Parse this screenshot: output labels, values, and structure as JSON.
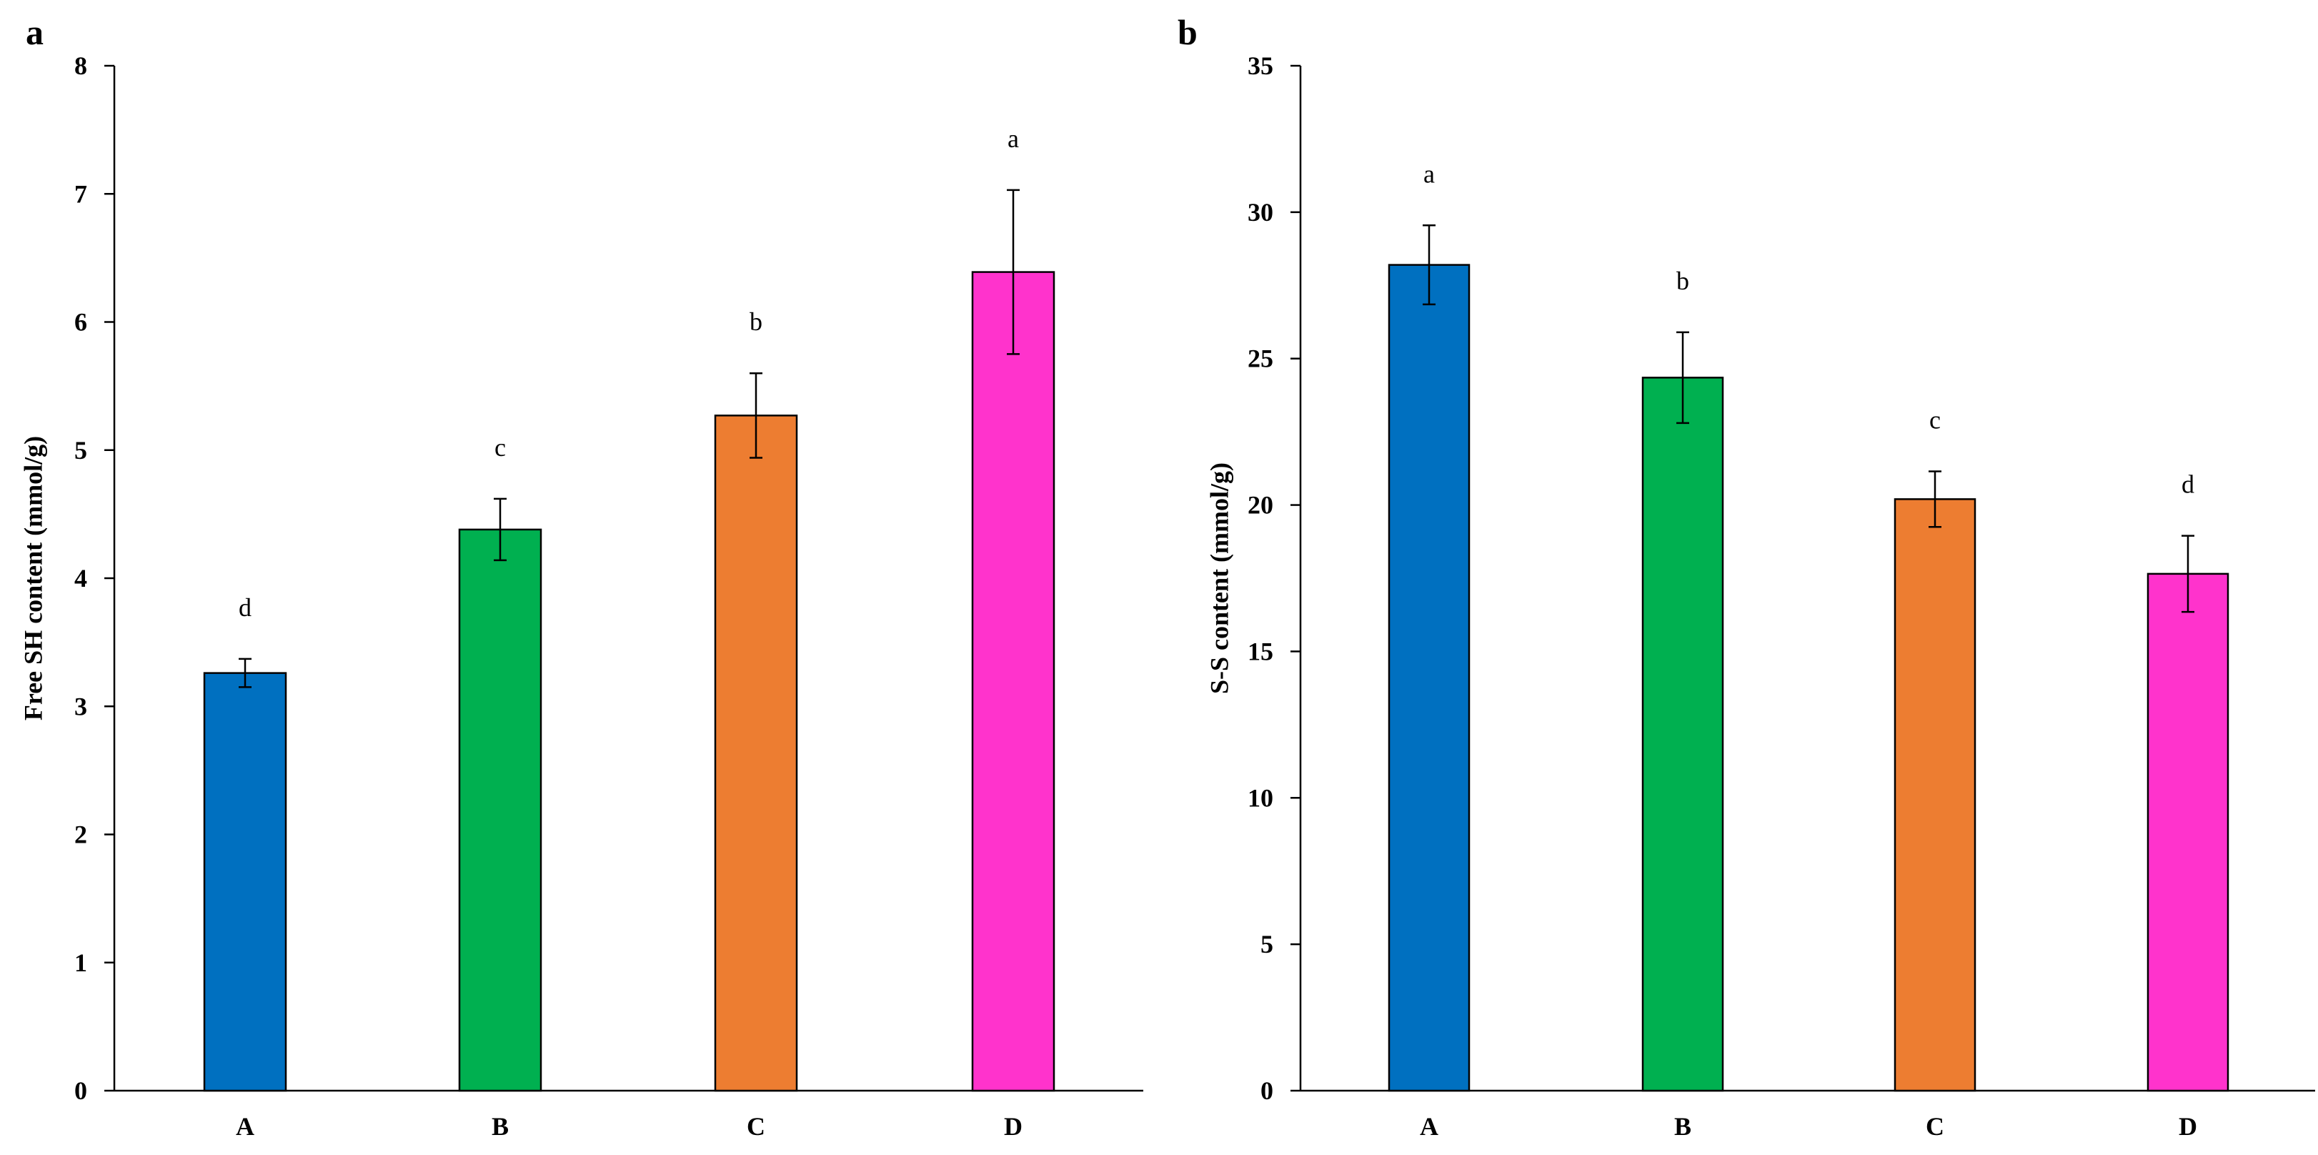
{
  "chart_data": [
    {
      "panel_label": "a",
      "type": "bar",
      "categories": [
        "A",
        "B",
        "C",
        "D"
      ],
      "values": [
        3.26,
        4.38,
        5.27,
        6.39
      ],
      "errors": [
        0.11,
        0.24,
        0.33,
        0.64
      ],
      "significance": [
        "d",
        "c",
        "b",
        "a"
      ],
      "colors": [
        "#0070C0",
        "#00B050",
        "#ED7D31",
        "#FF33CC"
      ],
      "title": "",
      "xlabel": "",
      "ylabel": "Free SH content (mmol/g)",
      "ylim": [
        0,
        8
      ],
      "yticks": [
        0,
        1,
        2,
        3,
        4,
        5,
        6,
        7,
        8
      ],
      "ytick_labels": [
        "0",
        "1",
        "2",
        "3",
        "4",
        "5",
        "6",
        "7",
        "8"
      ],
      "grid": false
    },
    {
      "panel_label": "b",
      "type": "bar",
      "categories": [
        "A",
        "B",
        "C",
        "D"
      ],
      "values": [
        28.2,
        24.35,
        20.2,
        17.65
      ],
      "errors": [
        1.35,
        1.55,
        0.95,
        1.3
      ],
      "significance": [
        "a",
        "b",
        "c",
        "d"
      ],
      "colors": [
        "#0070C0",
        "#00B050",
        "#ED7D31",
        "#FF33CC"
      ],
      "title": "",
      "xlabel": "",
      "ylabel": "S-S content (mmol/g)",
      "ylim": [
        0,
        35
      ],
      "yticks": [
        0,
        5,
        10,
        15,
        20,
        25,
        30,
        35
      ],
      "ytick_labels": [
        "0",
        "5",
        "10",
        "15",
        "20",
        "25",
        "30",
        "35"
      ],
      "grid": false
    }
  ]
}
